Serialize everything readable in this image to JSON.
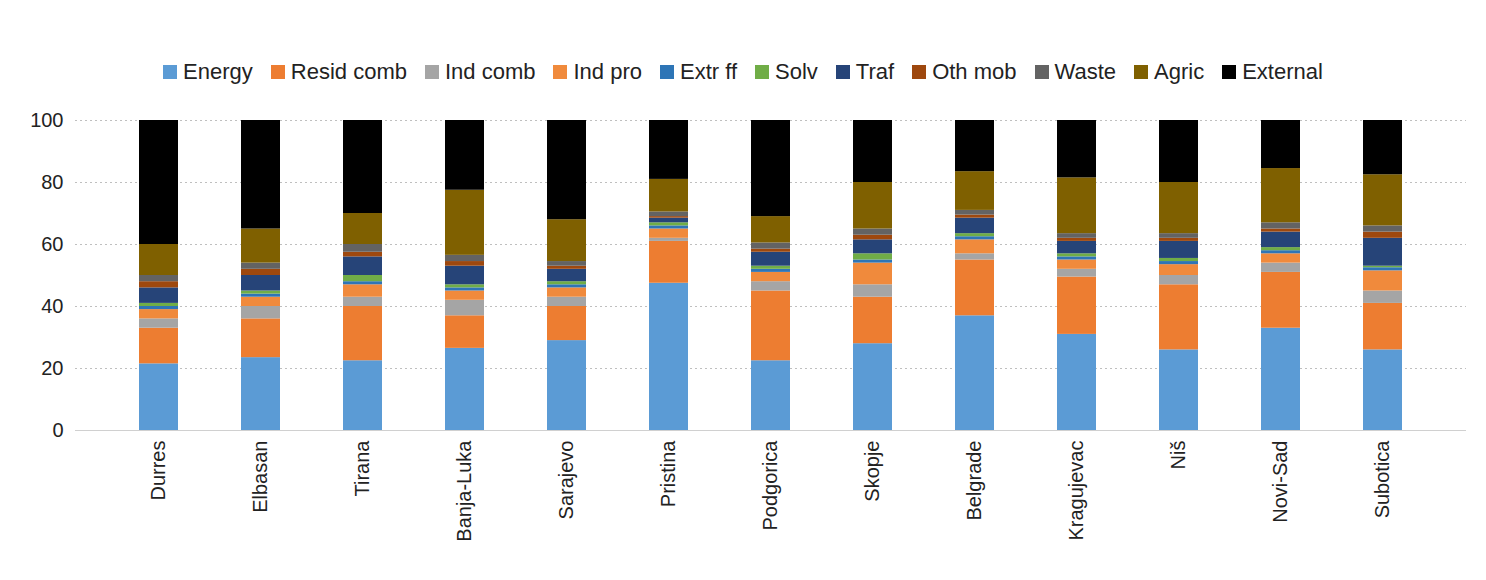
{
  "chart_data": {
    "type": "bar",
    "stacked": true,
    "grid": true,
    "legend": "top",
    "categories": [
      "Durres",
      "Elbasan",
      "Tirana",
      "Banja-Luka",
      "Sarajevo",
      "Pristina",
      "Podgorica",
      "Skopje",
      "Belgrade",
      "Kragujevac",
      "Niš",
      "Novi-Sad",
      "Subotica"
    ],
    "ylim": [
      0,
      100
    ],
    "yticks": [
      0,
      20,
      40,
      60,
      80,
      100
    ],
    "series": [
      {
        "name": "Energy",
        "color": "#5b9bd5",
        "values": [
          21.5,
          23.5,
          22.5,
          26.5,
          29,
          47.5,
          22.5,
          28,
          37,
          31,
          26,
          33,
          26
        ]
      },
      {
        "name": "Resid comb",
        "color": "#ed7d31",
        "values": [
          11.5,
          12.5,
          17.5,
          10.5,
          11,
          13.5,
          22.5,
          15,
          18,
          18.5,
          21,
          18,
          15
        ]
      },
      {
        "name": "Ind comb",
        "color": "#a5a5a5",
        "values": [
          3,
          4,
          3,
          5,
          3,
          1,
          3,
          4,
          2,
          2.5,
          3,
          3,
          4
        ]
      },
      {
        "name": "Ind pro",
        "color": "#f08a3c",
        "values": [
          3,
          3,
          4,
          3,
          3,
          3,
          3,
          7,
          4.5,
          3,
          3.5,
          3,
          6.5
        ]
      },
      {
        "name": "Extr ff",
        "color": "#2e75b6",
        "values": [
          1,
          1,
          1,
          1,
          1,
          1,
          1,
          1,
          1,
          1,
          1,
          1,
          1
        ]
      },
      {
        "name": "Solv",
        "color": "#70ad47",
        "values": [
          1,
          1,
          2,
          1,
          1,
          1,
          1,
          2,
          1,
          1,
          1,
          1,
          0.5
        ]
      },
      {
        "name": "Traf",
        "color": "#264478",
        "values": [
          5,
          5,
          6,
          6,
          4,
          1.5,
          4.5,
          4.5,
          5,
          4,
          5.5,
          5,
          9
        ]
      },
      {
        "name": "Oth mob",
        "color": "#9e480e",
        "values": [
          2,
          2,
          1.5,
          1.5,
          1,
          0.5,
          1,
          1.5,
          1,
          1,
          1,
          1,
          2
        ]
      },
      {
        "name": "Waste",
        "color": "#636363",
        "values": [
          2,
          2,
          2.5,
          2,
          1.5,
          1.5,
          2,
          2,
          1.5,
          1.5,
          1.5,
          2,
          2
        ]
      },
      {
        "name": "Agric",
        "color": "#7f6000",
        "values": [
          10,
          11,
          10,
          21,
          13.5,
          10.5,
          8.5,
          15,
          12.5,
          18,
          16.5,
          17.5,
          16.5
        ]
      },
      {
        "name": "External",
        "color": "#000000",
        "values": [
          40,
          35,
          30,
          22.5,
          32,
          19,
          31,
          20,
          16.5,
          18.5,
          20,
          15.5,
          17.5
        ]
      }
    ]
  }
}
